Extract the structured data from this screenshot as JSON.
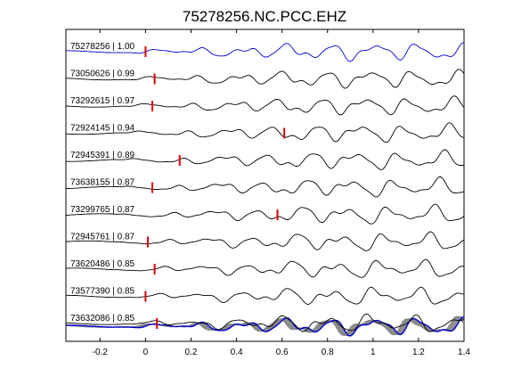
{
  "chart_data": {
    "type": "line",
    "title": "75278256.NC.PCC.EHZ",
    "xlabel": "",
    "ylabel": "",
    "xlim": [
      -0.35,
      1.4
    ],
    "xticks": [
      -0.2,
      0,
      0.2,
      0.4,
      0.6,
      0.8,
      1,
      1.2,
      1.4
    ],
    "xtick_labels": [
      "-0.2",
      "0",
      "0.2",
      "0.4",
      "0.6",
      "0.8",
      "1",
      "1.2",
      "1.4"
    ],
    "grid": false,
    "colors": {
      "reference": "#0000cc",
      "trace": "#000000",
      "pick": "#dd0000",
      "stack": "#888888"
    },
    "traces": [
      {
        "label": "75278256 | 1.00",
        "pick": 0.0
      },
      {
        "label": "73050626 | 0.99",
        "pick": 0.04
      },
      {
        "label": "73292615 | 0.97",
        "pick": 0.03
      },
      {
        "label": "72924145 | 0.94",
        "pick": 0.61
      },
      {
        "label": "72945391 | 0.89",
        "pick": 0.15
      },
      {
        "label": "73638155 | 0.87",
        "pick": 0.03
      },
      {
        "label": "73299765 | 0.87",
        "pick": 0.58
      },
      {
        "label": "72945761 | 0.87",
        "pick": 0.01
      },
      {
        "label": "73620486 | 0.85",
        "pick": 0.04
      },
      {
        "label": "73577390 | 0.85",
        "pick": 0.0
      },
      {
        "label": "73632086 | 0.85",
        "pick": 0.05
      }
    ]
  }
}
